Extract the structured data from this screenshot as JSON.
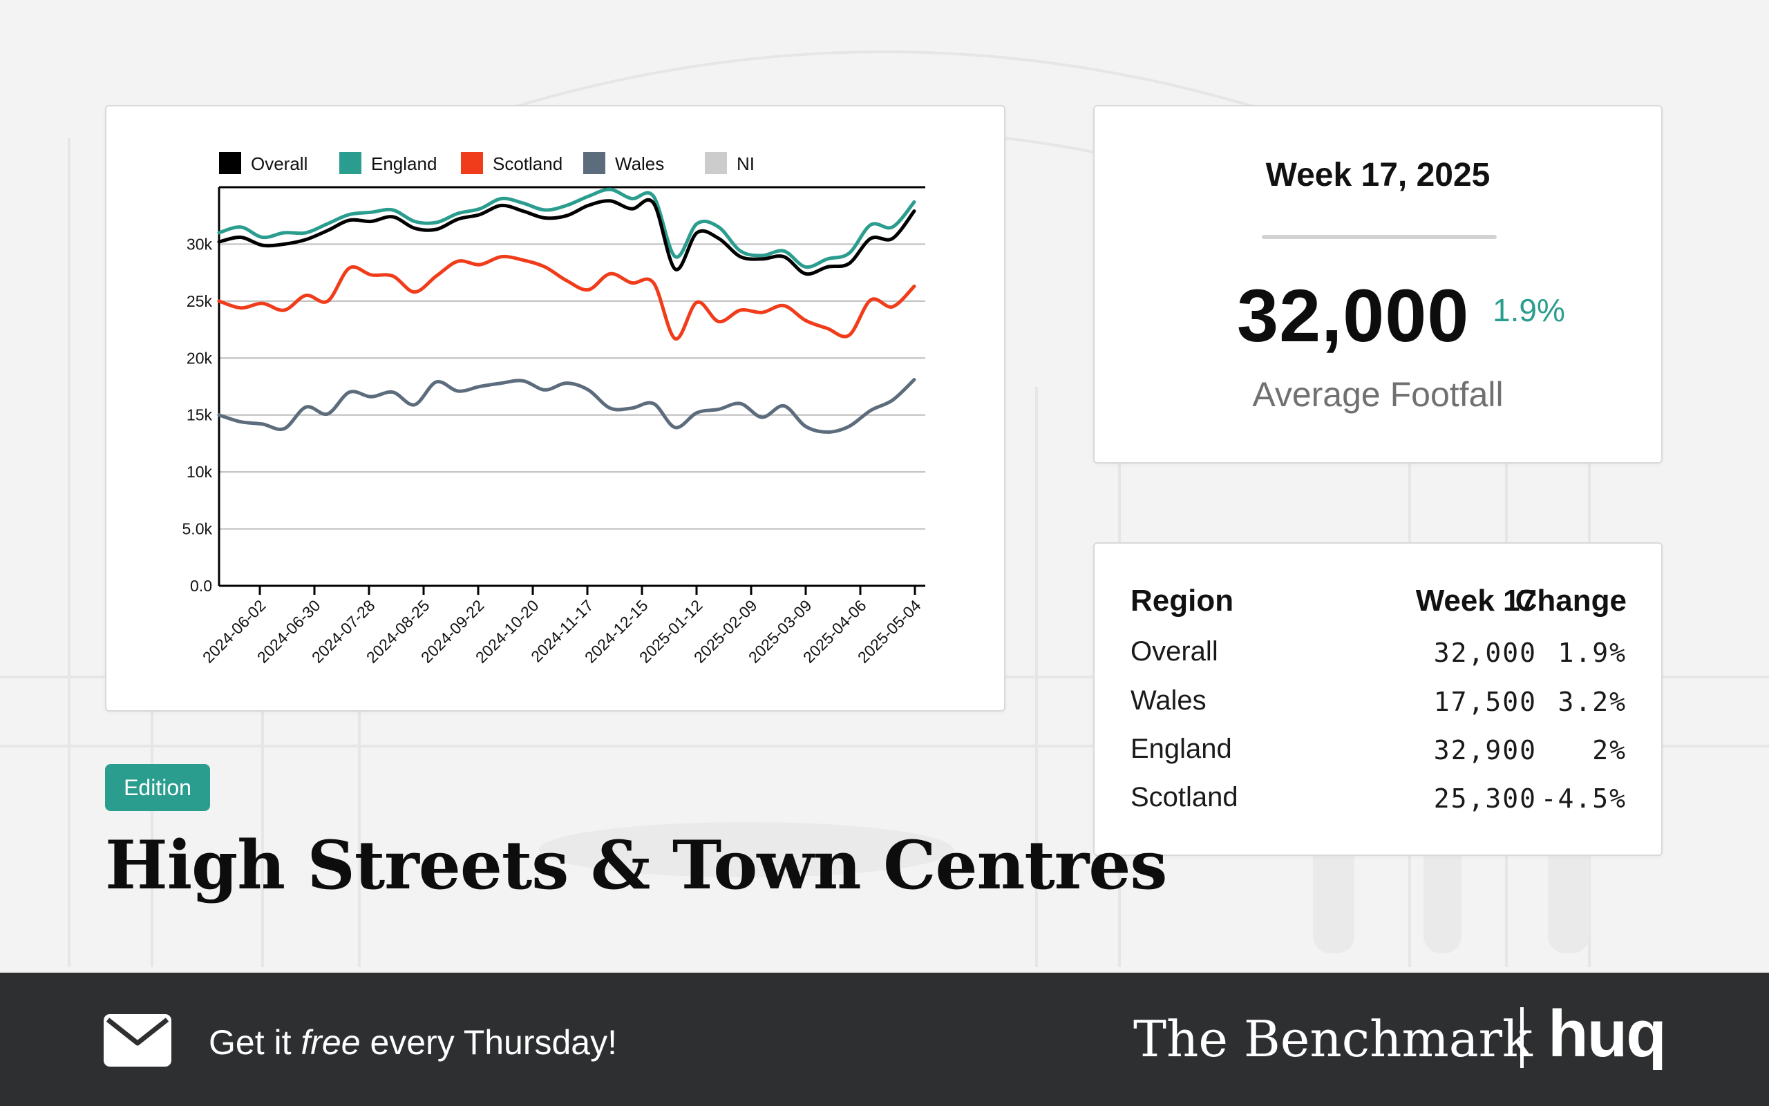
{
  "chart_data": {
    "type": "line",
    "legend_position": "top",
    "x_tick_labels": [
      "2024-06-02",
      "2024-06-30",
      "2024-07-28",
      "2024-08-25",
      "2024-09-22",
      "2024-10-20",
      "2024-11-17",
      "2024-12-15",
      "2025-01-12",
      "2025-02-09",
      "2025-03-09",
      "2025-04-06",
      "2025-05-04"
    ],
    "y_ticks": [
      "0.0",
      "5.0k",
      "10k",
      "15k",
      "20k",
      "25k",
      "30k"
    ],
    "ylim": [
      0,
      35000
    ],
    "grid": "horizontal",
    "series": [
      {
        "name": "Overall",
        "color": "#000000",
        "values": [
          30200,
          30600,
          29900,
          30000,
          30400,
          31200,
          32100,
          32000,
          32400,
          31400,
          31300,
          32200,
          32600,
          33400,
          32900,
          32300,
          32500,
          33400,
          33800,
          33100,
          33600,
          27800,
          31000,
          30500,
          28900,
          28700,
          28900,
          27400,
          28000,
          28300,
          30500,
          30500,
          32900
        ]
      },
      {
        "name": "England",
        "color": "#2a9d8f",
        "values": [
          31000,
          31500,
          30600,
          31000,
          31000,
          31800,
          32600,
          32800,
          33000,
          32000,
          31900,
          32700,
          33100,
          34000,
          33600,
          33000,
          33400,
          34200,
          34800,
          34000,
          34200,
          28900,
          31800,
          31500,
          29400,
          29000,
          29400,
          28000,
          28700,
          29200,
          31700,
          31500,
          33700
        ]
      },
      {
        "name": "Scotland",
        "color": "#f03c1a",
        "values": [
          25000,
          24400,
          24800,
          24200,
          25500,
          25000,
          27900,
          27300,
          27200,
          25800,
          27200,
          28500,
          28200,
          28900,
          28600,
          28000,
          26800,
          26000,
          27400,
          26600,
          26600,
          21700,
          24900,
          23200,
          24200,
          24000,
          24600,
          23300,
          22600,
          22000,
          25100,
          24500,
          26300
        ]
      },
      {
        "name": "Wales",
        "color": "#5c6c7c",
        "values": [
          15000,
          14400,
          14200,
          13800,
          15700,
          15100,
          17000,
          16600,
          17000,
          15900,
          17900,
          17100,
          17500,
          17800,
          18000,
          17200,
          17800,
          17200,
          15600,
          15600,
          16000,
          13900,
          15200,
          15500,
          16000,
          14800,
          15800,
          14000,
          13500,
          14000,
          15400,
          16300,
          18100
        ]
      },
      {
        "name": "NI",
        "color": "#cccccc",
        "values": []
      }
    ]
  },
  "summary": {
    "week": "Week 17, 2025",
    "value": "32,000",
    "change": "1.9%",
    "label": "Average Footfall"
  },
  "table": {
    "headers": [
      "Region",
      "Week 17",
      "Change"
    ],
    "rows": [
      {
        "region": "Overall",
        "week": "32,000",
        "change": "1.9%"
      },
      {
        "region": "Wales",
        "week": "17,500",
        "change": "3.2%"
      },
      {
        "region": "England",
        "week": "32,900",
        "change": "2%"
      },
      {
        "region": "Scotland",
        "week": "25,300",
        "change": "-4.5%"
      }
    ]
  },
  "badge": "Edition",
  "title": "High Streets & Town Centres",
  "footer": {
    "cta_before": "Get it ",
    "cta_emphasis": "free",
    "cta_after": " every Thursday!",
    "brand": "The Benchmark",
    "logo": "huq",
    "icon": "mail-icon"
  },
  "colors": {
    "accent": "#2a9d8f",
    "footer": "#2e2f31"
  }
}
